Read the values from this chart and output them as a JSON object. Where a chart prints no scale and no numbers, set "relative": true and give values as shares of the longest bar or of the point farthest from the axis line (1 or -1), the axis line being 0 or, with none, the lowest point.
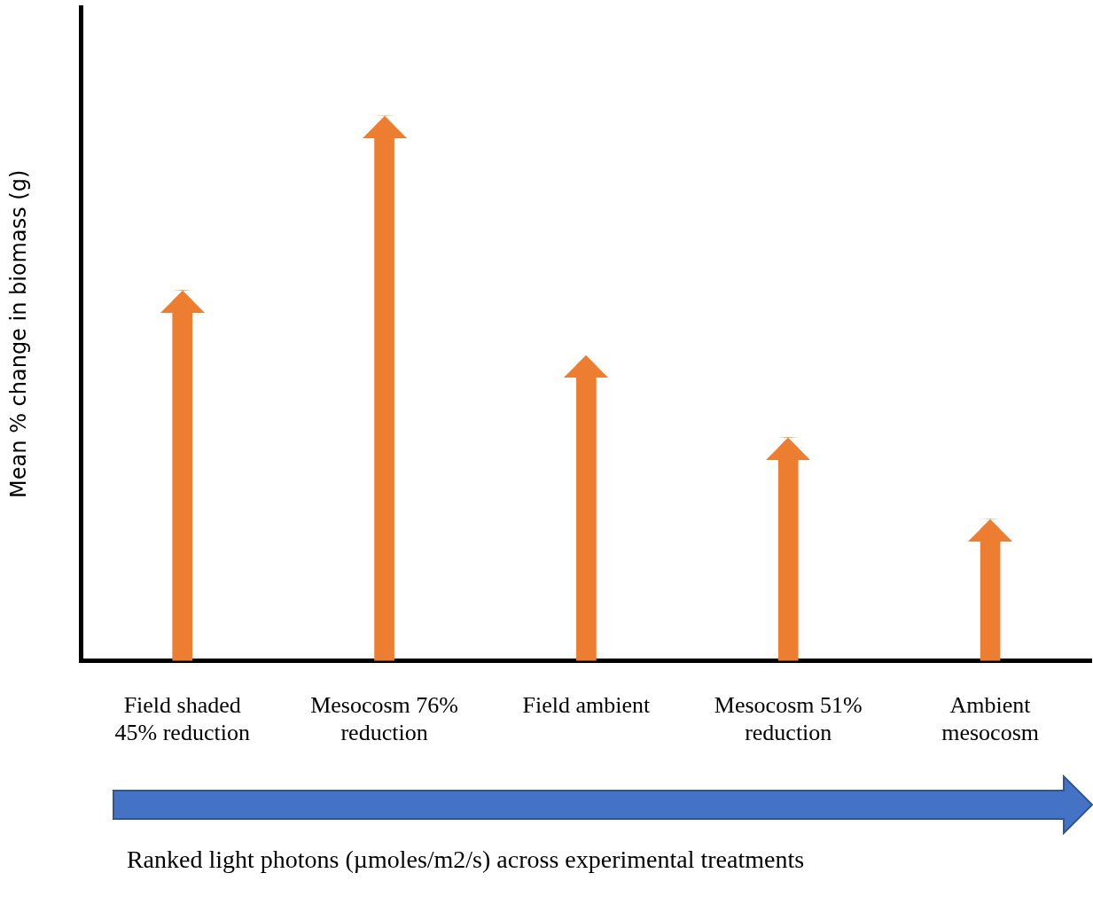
{
  "chart_data": {
    "type": "bar",
    "relative": true,
    "xlabel": "Ranked light photons (µmoles/m2/s) across experimental treatments",
    "ylabel": "Mean % change in biomass (g)",
    "categories": [
      "Field shaded 45% reduction",
      "Mesocosm 76% reduction",
      "Field ambient",
      "Mesocosm 51% reduction",
      "Ambient mesocosm"
    ],
    "values": [
      0.68,
      1,
      0.56,
      0.41,
      0.26
    ],
    "color": "#ed7d31",
    "grid": false,
    "legend": false
  }
}
